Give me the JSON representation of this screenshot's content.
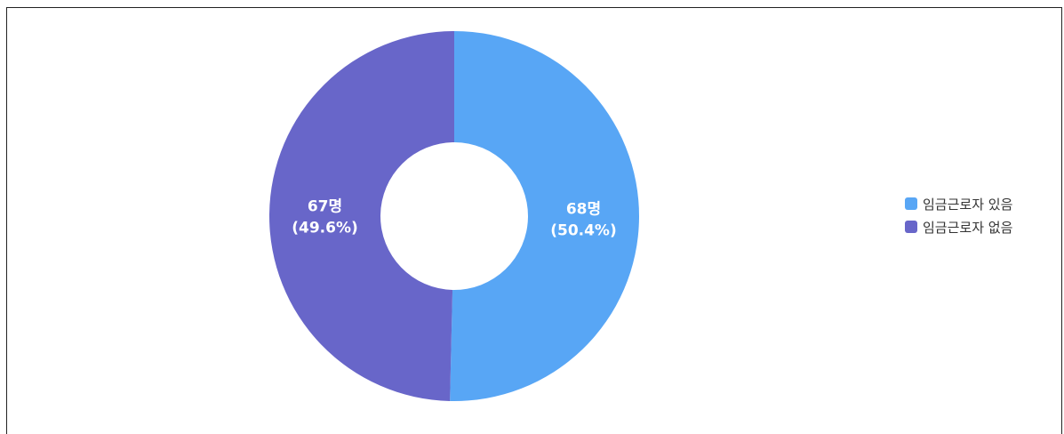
{
  "chart_data": {
    "type": "pie",
    "categories": [
      "임금근로자 있음",
      "임금근로자 없음"
    ],
    "values": [
      68,
      67
    ],
    "value_labels": [
      "68명",
      "67명"
    ],
    "percent_labels": [
      "(50.4%)",
      "(49.6%)"
    ],
    "colors": [
      "#58a6f5",
      "#6866c9"
    ],
    "donut": true,
    "legend_position": "right"
  }
}
